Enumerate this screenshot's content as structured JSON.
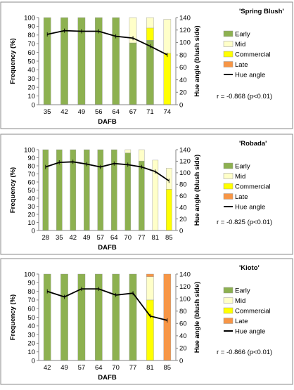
{
  "colors": {
    "early": "#8db150",
    "mid": "#ffffc9",
    "commercial": "#ffff00",
    "late": "#f79646",
    "hue_line": "#000000",
    "panel_border": "#888888"
  },
  "chart_data": [
    {
      "type": "bar",
      "stacked": true,
      "title": "'Spring Blush'",
      "xlabel": "DAFB",
      "ylabel": "Frequency (%)",
      "y2label": "Hue angle (blush side)",
      "ylim": [
        0,
        100
      ],
      "y2lim": [
        0,
        140
      ],
      "yticks": [
        "0",
        "10",
        "20",
        "30",
        "40",
        "50",
        "60",
        "70",
        "80",
        "90",
        "100"
      ],
      "y2ticks": [
        "0",
        "20",
        "40",
        "60",
        "80",
        "100",
        "120",
        "140"
      ],
      "categories": [
        "35",
        "42",
        "49",
        "56",
        "64",
        "67",
        "71",
        "74"
      ],
      "series": [
        {
          "name": "Early",
          "values": [
            100,
            100,
            100,
            100,
            100,
            71,
            74,
            0
          ]
        },
        {
          "name": "Mid",
          "values": [
            0,
            0,
            0,
            0,
            0,
            29,
            12,
            39
          ]
        },
        {
          "name": "Commercial",
          "values": [
            0,
            0,
            0,
            0,
            0,
            0,
            14,
            59
          ]
        },
        {
          "name": "Late",
          "values": [
            0,
            0,
            0,
            0,
            0,
            0,
            0,
            0
          ]
        }
      ],
      "line": {
        "name": "Hue angle",
        "values": [
          113,
          119,
          118,
          118,
          110,
          107,
          94,
          80
        ]
      },
      "legend": [
        "Early",
        "Mid",
        "Commercial",
        "Late",
        "Hue angle"
      ],
      "legend_position": "right",
      "grid": false,
      "annotation": "r = -0.868 (p<0.01)"
    },
    {
      "type": "bar",
      "stacked": true,
      "title": "'Robada'",
      "xlabel": "DAFB",
      "ylabel": "Frequency (%)",
      "y2label": "Hue angle (blush side)",
      "ylim": [
        0,
        100
      ],
      "y2lim": [
        0,
        140
      ],
      "yticks": [
        "0",
        "10",
        "20",
        "30",
        "40",
        "50",
        "60",
        "70",
        "80",
        "90",
        "100"
      ],
      "y2ticks": [
        "0",
        "20",
        "40",
        "60",
        "80",
        "100",
        "120",
        "140"
      ],
      "categories": [
        "28",
        "35",
        "42",
        "49",
        "57",
        "64",
        "70",
        "77",
        "81",
        "85"
      ],
      "series": [
        {
          "name": "Early",
          "values": [
            100,
            100,
            100,
            100,
            100,
            100,
            96,
            86,
            0,
            0
          ]
        },
        {
          "name": "Mid",
          "values": [
            0,
            0,
            0,
            0,
            0,
            0,
            4,
            14,
            87,
            26
          ]
        },
        {
          "name": "Commercial",
          "values": [
            0,
            0,
            0,
            0,
            0,
            0,
            0,
            0,
            0,
            51
          ]
        },
        {
          "name": "Late",
          "values": [
            0,
            0,
            0,
            0,
            0,
            0,
            0,
            0,
            0,
            0
          ]
        }
      ],
      "line": {
        "name": "Hue angle",
        "values": [
          110,
          118,
          119,
          115,
          110,
          116,
          114,
          110,
          102,
          86
        ]
      },
      "legend": [
        "Early",
        "Mid",
        "Commercial",
        "Late",
        "Hue angle"
      ],
      "legend_position": "right",
      "grid": false,
      "annotation": "r = -0.825 (p<0.01)"
    },
    {
      "type": "bar",
      "stacked": true,
      "title": "'Kioto'",
      "xlabel": "DAFB",
      "ylabel": "Frequency (%)",
      "y2label": "Hue angle (blush side)",
      "ylim": [
        0,
        100
      ],
      "y2lim": [
        0,
        140
      ],
      "yticks": [
        "0",
        "10",
        "20",
        "30",
        "40",
        "50",
        "60",
        "70",
        "80",
        "90",
        "100"
      ],
      "y2ticks": [
        "0",
        "20",
        "40",
        "60",
        "80",
        "100",
        "120",
        "140"
      ],
      "categories": [
        "42",
        "49",
        "57",
        "64",
        "70",
        "77",
        "81",
        "85"
      ],
      "series": [
        {
          "name": "Early",
          "values": [
            100,
            100,
            100,
            100,
            100,
            100,
            0,
            0
          ]
        },
        {
          "name": "Mid",
          "values": [
            0,
            0,
            0,
            0,
            0,
            0,
            27,
            0
          ]
        },
        {
          "name": "Commercial",
          "values": [
            0,
            0,
            0,
            0,
            0,
            0,
            70,
            0
          ]
        },
        {
          "name": "Late",
          "values": [
            0,
            0,
            0,
            0,
            0,
            0,
            3,
            100
          ]
        }
      ],
      "line": {
        "name": "Hue angle",
        "values": [
          112,
          103,
          116,
          116,
          106,
          109,
          72,
          65
        ]
      },
      "legend": [
        "Early",
        "Mid",
        "Commercial",
        "Late",
        "Hue angle"
      ],
      "legend_position": "right",
      "grid": false,
      "annotation": "r = -0.866 (p<0.01)"
    }
  ]
}
